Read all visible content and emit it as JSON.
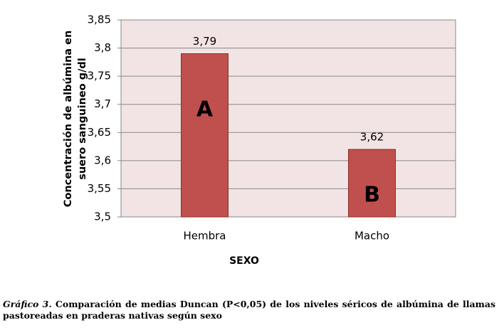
{
  "chart_data": {
    "type": "bar",
    "categories": [
      "Hembra",
      "Macho"
    ],
    "values": [
      3.79,
      3.62
    ],
    "value_labels": [
      "3,79",
      "3,62"
    ],
    "bar_letters": [
      "A",
      "B"
    ],
    "color": "#c0504d",
    "x_label": "SEXO",
    "y_label": [
      "Concentración de albúmina en",
      "suero sanguineo g/dl"
    ],
    "ylim": [
      3.5,
      3.85
    ],
    "yticks": [
      {
        "value": 3.5,
        "label": "3,5"
      },
      {
        "value": 3.55,
        "label": "3,55"
      },
      {
        "value": 3.6,
        "label": "3,6"
      },
      {
        "value": 3.65,
        "label": "3,65"
      },
      {
        "value": 3.7,
        "label": "3,7"
      },
      {
        "value": 3.75,
        "label": "3,75"
      },
      {
        "value": 3.8,
        "label": "3,8"
      },
      {
        "value": 3.85,
        "label": "3,85"
      }
    ],
    "grid": true
  },
  "caption": {
    "label": "Gráfico 3.",
    "text": "Comparación de medias Duncan (P<0,05) de los niveles séricos de albúmina de llamas pastoreadas en praderas nativas según sexo"
  }
}
